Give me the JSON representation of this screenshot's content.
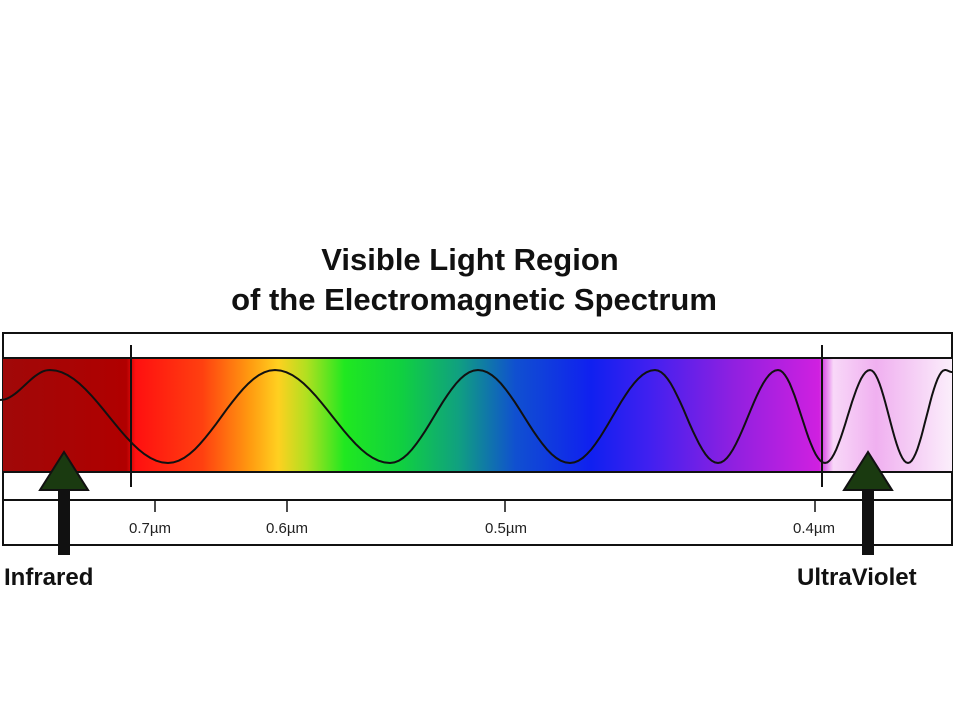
{
  "title": {
    "line1": "Visible Light Region",
    "line2": "of the Electromagnetic Spectrum"
  },
  "scale_labels": [
    "0.7µm",
    "0.6µm",
    "0.5µm",
    "0.4µm"
  ],
  "regions": {
    "left": "Infrared",
    "right": "UltraViolet"
  }
}
